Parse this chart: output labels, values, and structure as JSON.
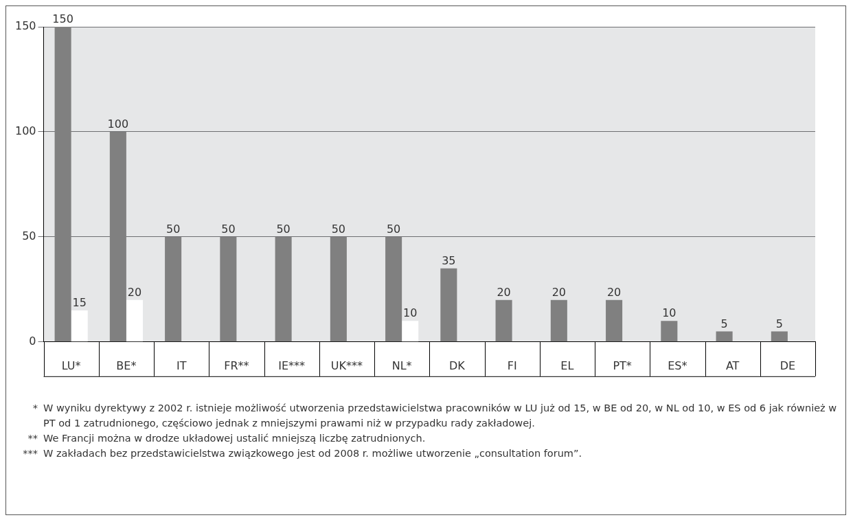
{
  "chart_data": {
    "type": "bar",
    "categories": [
      "LU*",
      "BE*",
      "IT",
      "FR**",
      "IE***",
      "UK***",
      "NL*",
      "DK",
      "FI",
      "EL",
      "PT*",
      "ES*",
      "AT",
      "DE"
    ],
    "series": [
      {
        "color": "#808080",
        "values": [
          150,
          100,
          50,
          50,
          50,
          50,
          50,
          35,
          20,
          20,
          20,
          10,
          5,
          5
        ]
      },
      {
        "color": "#ffffff",
        "values": [
          15,
          20,
          null,
          null,
          null,
          null,
          10,
          null,
          null,
          null,
          null,
          null,
          null,
          null
        ]
      }
    ],
    "ylim": [
      0,
      150
    ],
    "yticks": [
      0,
      50,
      100,
      150
    ],
    "grid": "y",
    "data_labels": true,
    "annotations": [
      "*\tW wyniku dyrektywy z 2002 r. istnieje możliwość utworzenia przedstawicielstwa pracowników w LU już od 15, w BE od 20, w NL od 10, w ES od 6 jak również w PT od 1 zatrudnionego, częściowo jednak z mniejszymi prawami niż w przypadku rady zakładowej.",
      "**\tWe Francji można w drodze układowej ustalić mniejszą liczbę zatrudnionych.",
      "***\tW zakładach bez przedstawicielstwa związkowego jest od 2008 r. możliwe utworzenie „consultation forum”."
    ]
  }
}
